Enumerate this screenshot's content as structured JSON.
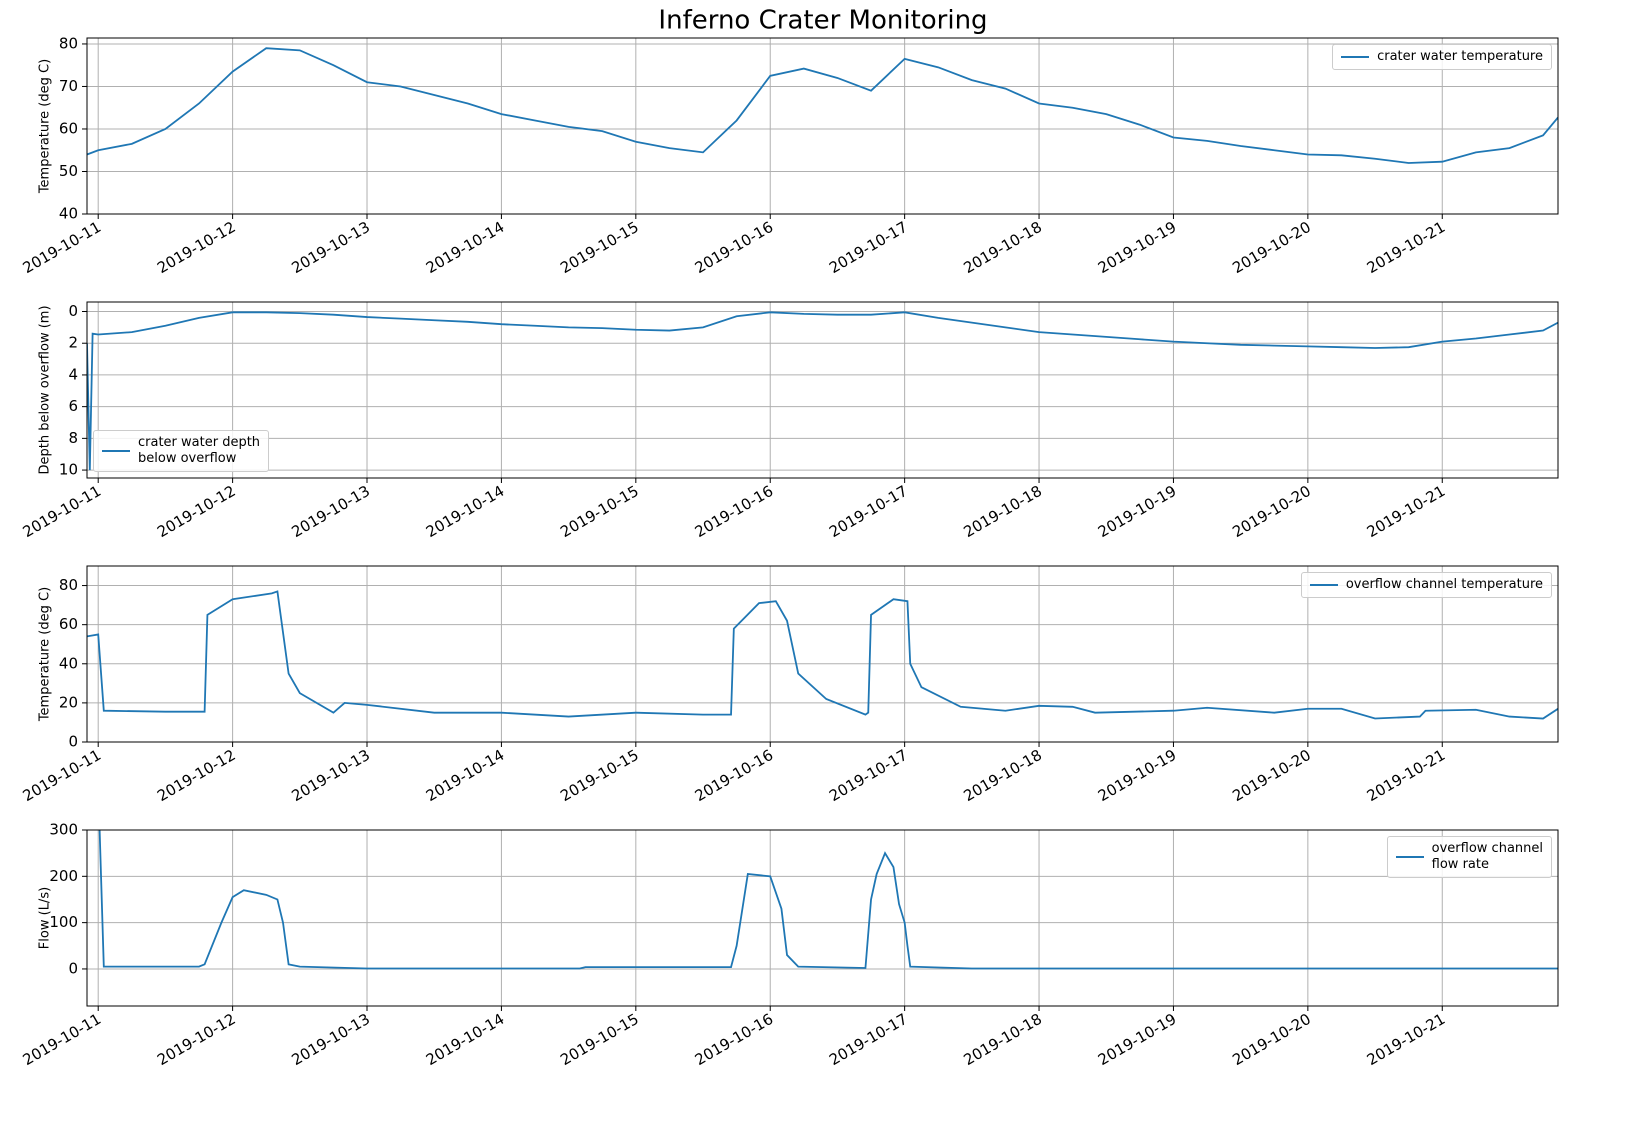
{
  "title": "Inferno Crater Monitoring",
  "chart_data": [
    {
      "type": "line",
      "ylabel": "Temperature (deg C)",
      "x": [
        "2019-10-10T22:00",
        "2019-10-11T00:00",
        "2019-10-11T06:00",
        "2019-10-11T12:00",
        "2019-10-11T18:00",
        "2019-10-12T00:00",
        "2019-10-12T06:00",
        "2019-10-12T12:00",
        "2019-10-12T18:00",
        "2019-10-13T00:00",
        "2019-10-13T06:00",
        "2019-10-13T12:00",
        "2019-10-13T18:00",
        "2019-10-14T00:00",
        "2019-10-14T06:00",
        "2019-10-14T12:00",
        "2019-10-14T18:00",
        "2019-10-15T00:00",
        "2019-10-15T06:00",
        "2019-10-15T12:00",
        "2019-10-15T18:00",
        "2019-10-16T00:00",
        "2019-10-16T06:00",
        "2019-10-16T12:00",
        "2019-10-16T18:00",
        "2019-10-17T00:00",
        "2019-10-17T06:00",
        "2019-10-17T12:00",
        "2019-10-17T18:00",
        "2019-10-18T00:00",
        "2019-10-18T06:00",
        "2019-10-18T12:00",
        "2019-10-18T18:00",
        "2019-10-19T00:00",
        "2019-10-19T06:00",
        "2019-10-19T12:00",
        "2019-10-19T18:00",
        "2019-10-20T00:00",
        "2019-10-20T06:00",
        "2019-10-20T12:00",
        "2019-10-20T18:00",
        "2019-10-21T00:00",
        "2019-10-21T06:00",
        "2019-10-21T12:00",
        "2019-10-21T18:00",
        "2019-10-21T20:40"
      ],
      "series": [
        {
          "name": "crater water temperature",
          "color": "#1f77b4",
          "values": [
            54,
            55,
            56.5,
            60,
            66,
            73.5,
            79,
            78.5,
            75,
            71,
            70,
            68,
            66,
            63.5,
            62,
            60.5,
            59.5,
            57,
            55.5,
            54.5,
            62,
            72.5,
            74.2,
            72,
            69,
            76.5,
            74.5,
            71.5,
            69.5,
            66,
            65,
            63.5,
            61,
            58,
            57.2,
            56,
            55,
            54,
            53.8,
            53,
            52,
            52.3,
            54.5,
            55.5,
            58.5,
            62.7
          ]
        }
      ],
      "xlim": [
        "2019-10-10T22:00",
        "2019-10-21T20:40"
      ],
      "xticks": [
        "2019-10-11",
        "2019-10-12",
        "2019-10-13",
        "2019-10-14",
        "2019-10-15",
        "2019-10-16",
        "2019-10-17",
        "2019-10-18",
        "2019-10-19",
        "2019-10-20",
        "2019-10-21"
      ],
      "ylim": [
        40,
        81.4
      ],
      "yticks": [
        40,
        50,
        60,
        70,
        80
      ],
      "grid": true,
      "legend": "upper right"
    },
    {
      "type": "line",
      "ylabel": "Depth below overflow (m)",
      "x": [
        "2019-10-10T22:00",
        "2019-10-10T22:30",
        "2019-10-10T23:00",
        "2019-10-11T00:00",
        "2019-10-11T06:00",
        "2019-10-11T12:00",
        "2019-10-11T18:00",
        "2019-10-12T00:00",
        "2019-10-12T06:00",
        "2019-10-12T12:00",
        "2019-10-12T18:00",
        "2019-10-13T00:00",
        "2019-10-13T06:00",
        "2019-10-13T12:00",
        "2019-10-13T18:00",
        "2019-10-14T00:00",
        "2019-10-14T06:00",
        "2019-10-14T12:00",
        "2019-10-14T18:00",
        "2019-10-15T00:00",
        "2019-10-15T06:00",
        "2019-10-15T12:00",
        "2019-10-15T18:00",
        "2019-10-16T00:00",
        "2019-10-16T06:00",
        "2019-10-16T12:00",
        "2019-10-16T18:00",
        "2019-10-17T00:00",
        "2019-10-17T06:00",
        "2019-10-17T12:00",
        "2019-10-17T18:00",
        "2019-10-18T00:00",
        "2019-10-18T06:00",
        "2019-10-18T12:00",
        "2019-10-18T18:00",
        "2019-10-19T00:00",
        "2019-10-19T06:00",
        "2019-10-19T12:00",
        "2019-10-19T18:00",
        "2019-10-20T00:00",
        "2019-10-20T06:00",
        "2019-10-20T12:00",
        "2019-10-20T18:00",
        "2019-10-21T00:00",
        "2019-10-21T06:00",
        "2019-10-21T12:00",
        "2019-10-21T18:00",
        "2019-10-21T20:40"
      ],
      "series": [
        {
          "name": "crater water depth\nbelow overflow",
          "color": "#1f77b4",
          "values": [
            2,
            10,
            1.4,
            1.45,
            1.3,
            0.9,
            0.4,
            0.05,
            0.05,
            0.1,
            0.2,
            0.35,
            0.45,
            0.55,
            0.65,
            0.8,
            0.9,
            1.0,
            1.05,
            1.15,
            1.2,
            1.0,
            0.3,
            0.05,
            0.15,
            0.2,
            0.2,
            0.05,
            0.4,
            0.7,
            1.0,
            1.3,
            1.45,
            1.6,
            1.75,
            1.9,
            2.0,
            2.1,
            2.15,
            2.2,
            2.25,
            2.3,
            2.25,
            1.9,
            1.7,
            1.45,
            1.2,
            0.7
          ]
        }
      ],
      "xlim": [
        "2019-10-10T22:00",
        "2019-10-21T20:40"
      ],
      "xticks": [
        "2019-10-11",
        "2019-10-12",
        "2019-10-13",
        "2019-10-14",
        "2019-10-15",
        "2019-10-16",
        "2019-10-17",
        "2019-10-18",
        "2019-10-19",
        "2019-10-20",
        "2019-10-21"
      ],
      "ylim": [
        10.5,
        -0.6
      ],
      "yticks": [
        0,
        2,
        4,
        6,
        8,
        10
      ],
      "grid": true,
      "legend": "lower left"
    },
    {
      "type": "line",
      "ylabel": "Temperature (deg C)",
      "x": [
        "2019-10-10T22:00",
        "2019-10-11T00:00",
        "2019-10-11T01:00",
        "2019-10-11T12:00",
        "2019-10-11T19:00",
        "2019-10-11T19:30",
        "2019-10-12T00:00",
        "2019-10-12T07:00",
        "2019-10-12T08:00",
        "2019-10-12T10:00",
        "2019-10-12T12:00",
        "2019-10-12T18:00",
        "2019-10-12T20:00",
        "2019-10-13T00:00",
        "2019-10-13T12:00",
        "2019-10-14T00:00",
        "2019-10-14T12:00",
        "2019-10-15T00:00",
        "2019-10-15T12:00",
        "2019-10-15T17:00",
        "2019-10-15T17:30",
        "2019-10-15T22:00",
        "2019-10-16T01:00",
        "2019-10-16T03:00",
        "2019-10-16T05:00",
        "2019-10-16T10:00",
        "2019-10-16T17:00",
        "2019-10-16T17:30",
        "2019-10-16T18:00",
        "2019-10-16T22:00",
        "2019-10-17T00:30",
        "2019-10-17T01:00",
        "2019-10-17T03:00",
        "2019-10-17T10:00",
        "2019-10-17T18:00",
        "2019-10-18T00:00",
        "2019-10-18T06:00",
        "2019-10-18T10:00",
        "2019-10-19T00:00",
        "2019-10-19T06:00",
        "2019-10-19T18:00",
        "2019-10-20T00:00",
        "2019-10-20T06:00",
        "2019-10-20T12:00",
        "2019-10-20T20:00",
        "2019-10-20T21:00",
        "2019-10-21T06:00",
        "2019-10-21T12:00",
        "2019-10-21T18:00",
        "2019-10-21T20:40"
      ],
      "series": [
        {
          "name": "overflow channel temperature",
          "color": "#1f77b4",
          "values": [
            54,
            55,
            16,
            15.5,
            15.5,
            65,
            73,
            76,
            77,
            35,
            25,
            15,
            20,
            19,
            15,
            15,
            13,
            15,
            14,
            14,
            58,
            71,
            72,
            62,
            35,
            22,
            14,
            15,
            65,
            73,
            72,
            40,
            28,
            18,
            16,
            18.5,
            18,
            15,
            16,
            17.5,
            15,
            17,
            17,
            12,
            13,
            16,
            16.5,
            13,
            12,
            17
          ]
        }
      ],
      "xlim": [
        "2019-10-10T22:00",
        "2019-10-21T20:40"
      ],
      "xticks": [
        "2019-10-11",
        "2019-10-12",
        "2019-10-13",
        "2019-10-14",
        "2019-10-15",
        "2019-10-16",
        "2019-10-17",
        "2019-10-18",
        "2019-10-19",
        "2019-10-20",
        "2019-10-21"
      ],
      "ylim": [
        0,
        90
      ],
      "yticks": [
        0,
        20,
        40,
        60,
        80
      ],
      "grid": true,
      "legend": "upper right"
    },
    {
      "type": "line",
      "ylabel": "Flow (L/s)",
      "x": [
        "2019-10-11T00:00",
        "2019-10-11T01:00",
        "2019-10-11T18:00",
        "2019-10-11T19:00",
        "2019-10-11T22:00",
        "2019-10-12T00:00",
        "2019-10-12T02:00",
        "2019-10-12T06:00",
        "2019-10-12T08:00",
        "2019-10-12T09:00",
        "2019-10-12T10:00",
        "2019-10-12T12:00",
        "2019-10-13T00:00",
        "2019-10-14T14:00",
        "2019-10-14T15:00",
        "2019-10-15T17:00",
        "2019-10-15T18:00",
        "2019-10-15T20:00",
        "2019-10-16T00:00",
        "2019-10-16T02:00",
        "2019-10-16T03:00",
        "2019-10-16T05:00",
        "2019-10-16T17:00",
        "2019-10-16T18:00",
        "2019-10-16T19:00",
        "2019-10-16T20:30",
        "2019-10-16T22:00",
        "2019-10-16T23:00",
        "2019-10-17T00:00",
        "2019-10-17T00:30",
        "2019-10-17T01:00",
        "2019-10-17T12:00",
        "2019-10-21T20:40"
      ],
      "series": [
        {
          "name": "overflow channel\nflow rate",
          "color": "#1f77b4",
          "values": [
            400,
            5,
            5,
            10,
            100,
            155,
            170,
            160,
            150,
            100,
            10,
            5,
            1,
            1,
            4,
            4,
            50,
            205,
            200,
            130,
            30,
            5,
            2,
            150,
            205,
            250,
            220,
            140,
            100,
            50,
            5,
            1,
            1
          ]
        }
      ],
      "xlim": [
        "2019-10-10T22:00",
        "2019-10-21T20:40"
      ],
      "xticks": [
        "2019-10-11",
        "2019-10-12",
        "2019-10-13",
        "2019-10-14",
        "2019-10-15",
        "2019-10-16",
        "2019-10-17",
        "2019-10-18",
        "2019-10-19",
        "2019-10-20",
        "2019-10-21"
      ],
      "ylim": [
        -80,
        300
      ],
      "yticks": [
        0,
        100,
        200,
        300
      ],
      "grid": true,
      "legend": "upper right"
    }
  ]
}
